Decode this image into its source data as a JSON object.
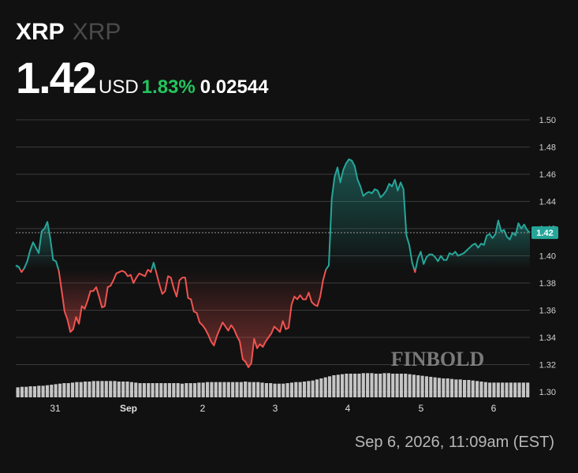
{
  "header": {
    "symbol": "XRP",
    "name": "XRP",
    "price": "1.42",
    "currency": "USD",
    "change_pct": "1.83%",
    "change_abs": "0.02544"
  },
  "timestamp": "Sep 6, 2026, 11:09am (EST)",
  "watermark": "FINBOLD",
  "colors": {
    "up": "#26a69a",
    "down": "#ef5350",
    "positive_text": "#22c55e",
    "background": "#111111"
  },
  "chart_data": {
    "type": "line",
    "x_ticks": [
      "31",
      "Sep",
      "2",
      "3",
      "4",
      "5",
      "6"
    ],
    "y_ticks": [
      "1.30",
      "1.32",
      "1.34",
      "1.36",
      "1.38",
      "1.40",
      "1.42",
      "1.44",
      "1.46",
      "1.48",
      "1.50"
    ],
    "ylim": [
      1.3,
      1.5
    ],
    "baseline": 1.39,
    "current_price_label": "1.42",
    "grid": true,
    "series": [
      {
        "values": [
          1.393,
          1.392,
          1.388,
          1.391,
          1.396,
          1.404,
          1.41,
          1.406,
          1.402,
          1.418,
          1.42,
          1.425,
          1.413,
          1.397,
          1.396,
          1.389,
          1.374,
          1.359,
          1.353,
          1.344,
          1.346,
          1.355,
          1.35,
          1.363,
          1.361,
          1.367,
          1.374,
          1.374,
          1.377,
          1.37,
          1.362,
          1.363,
          1.377,
          1.378,
          1.382,
          1.387,
          1.388,
          1.389,
          1.388,
          1.385,
          1.386,
          1.38,
          1.384,
          1.387,
          1.386,
          1.385,
          1.39,
          1.388,
          1.395,
          1.387,
          1.379,
          1.372,
          1.374,
          1.385,
          1.384,
          1.376,
          1.37,
          1.382,
          1.384,
          1.384,
          1.369,
          1.368,
          1.359,
          1.358,
          1.351,
          1.349,
          1.346,
          1.342,
          1.337,
          1.334,
          1.341,
          1.346,
          1.351,
          1.348,
          1.345,
          1.349,
          1.346,
          1.341,
          1.337,
          1.324,
          1.322,
          1.318,
          1.321,
          1.339,
          1.332,
          1.335,
          1.333,
          1.337,
          1.34,
          1.343,
          1.348,
          1.346,
          1.344,
          1.352,
          1.346,
          1.347,
          1.364,
          1.37,
          1.368,
          1.371,
          1.368,
          1.368,
          1.373,
          1.366,
          1.364,
          1.363,
          1.37,
          1.382,
          1.39,
          1.393,
          1.442,
          1.458,
          1.465,
          1.454,
          1.463,
          1.468,
          1.471,
          1.47,
          1.466,
          1.456,
          1.451,
          1.444,
          1.446,
          1.447,
          1.446,
          1.449,
          1.448,
          1.443,
          1.445,
          1.448,
          1.453,
          1.451,
          1.456,
          1.448,
          1.454,
          1.449,
          1.415,
          1.408,
          1.395,
          1.388,
          1.398,
          1.403,
          1.394,
          1.399,
          1.401,
          1.401,
          1.399,
          1.396,
          1.4,
          1.397,
          1.397,
          1.402,
          1.401,
          1.403,
          1.4,
          1.401,
          1.402,
          1.404,
          1.406,
          1.408,
          1.409,
          1.406,
          1.409,
          1.408,
          1.415,
          1.416,
          1.413,
          1.416,
          1.426,
          1.418,
          1.419,
          1.414,
          1.412,
          1.417,
          1.415,
          1.424,
          1.42,
          1.423,
          1.419,
          1.417
        ]
      },
      {
        "values": [
          19,
          20,
          20,
          21,
          21,
          22,
          22,
          23,
          24,
          25,
          26,
          27,
          27,
          28,
          29,
          29,
          30,
          30,
          31,
          31,
          31,
          31,
          31,
          31,
          30,
          30,
          30,
          29,
          28,
          27,
          27,
          27,
          27,
          27,
          27,
          27,
          27,
          27,
          27,
          26,
          27,
          27,
          27,
          28,
          28,
          29,
          29,
          29,
          29,
          29,
          29,
          29,
          29,
          29,
          30,
          29,
          29,
          29,
          28,
          27,
          27,
          26,
          26,
          26,
          27,
          28,
          29,
          29,
          30,
          31,
          32,
          34,
          36,
          38,
          40,
          42,
          43,
          44,
          45,
          45,
          45,
          45,
          46,
          46,
          46,
          45,
          45,
          46,
          46,
          45,
          45,
          45,
          45,
          44,
          43,
          42,
          41,
          40,
          39,
          38,
          37,
          36,
          36,
          35,
          34,
          34,
          33,
          33,
          32,
          31,
          30,
          29,
          28,
          28,
          28,
          28,
          28,
          28,
          28,
          28,
          28,
          28
        ]
      }
    ]
  }
}
